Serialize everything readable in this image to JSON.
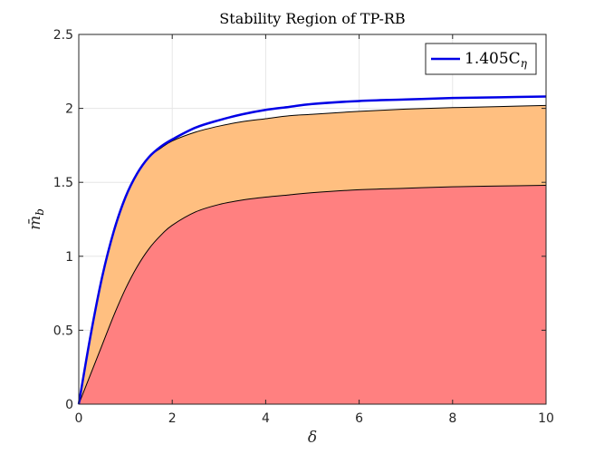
{
  "chart_data": {
    "type": "area",
    "title": "Stability Region of TP-RB",
    "xlabel": "δ",
    "ylabel": "m̄",
    "ylabel_sub": "b",
    "xlim": [
      0,
      10
    ],
    "ylim": [
      0,
      2.5
    ],
    "xticks": [
      0,
      2,
      4,
      6,
      8,
      10
    ],
    "yticks": [
      0,
      0.5,
      1,
      1.5,
      2,
      2.5
    ],
    "xtick_labels": [
      "0",
      "2",
      "4",
      "6",
      "8",
      "10"
    ],
    "ytick_labels": [
      "0",
      "0.5",
      "1",
      "1.5",
      "2",
      "2.5"
    ],
    "grid": true,
    "legend_placement": "top-right",
    "x": [
      0,
      0.25,
      0.5,
      0.75,
      1,
      1.25,
      1.5,
      1.75,
      2,
      2.5,
      3,
      3.5,
      4,
      4.5,
      5,
      6,
      7,
      8,
      9,
      10
    ],
    "series": [
      {
        "name": "1.405C",
        "name_sub": "η",
        "role": "line",
        "color": "#0000e6",
        "values": [
          0,
          0.46,
          0.86,
          1.17,
          1.4,
          1.56,
          1.67,
          1.74,
          1.79,
          1.87,
          1.92,
          1.96,
          1.99,
          2.01,
          2.03,
          2.05,
          2.06,
          2.07,
          2.075,
          2.08
        ]
      },
      {
        "role": "fill-upper",
        "color": "#ffbf80",
        "values": [
          0,
          0.46,
          0.86,
          1.17,
          1.4,
          1.56,
          1.67,
          1.73,
          1.78,
          1.84,
          1.88,
          1.91,
          1.93,
          1.95,
          1.96,
          1.98,
          1.995,
          2.005,
          2.012,
          2.02
        ]
      },
      {
        "role": "fill-lower",
        "color": "#ff8080",
        "values": [
          0,
          0.2,
          0.4,
          0.6,
          0.78,
          0.93,
          1.05,
          1.14,
          1.21,
          1.3,
          1.35,
          1.38,
          1.4,
          1.415,
          1.43,
          1.45,
          1.46,
          1.47,
          1.475,
          1.48
        ]
      }
    ]
  }
}
